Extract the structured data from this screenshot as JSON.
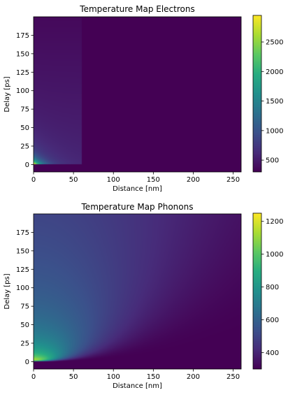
{
  "chart_data": [
    {
      "type": "heatmap",
      "title": "Temperature Map Electrons",
      "xlabel": "Distance [nm]",
      "ylabel": "Delay [ps]",
      "xlim": [
        0,
        260
      ],
      "ylim": [
        -10,
        200
      ],
      "xticks": [
        0,
        50,
        100,
        150,
        200,
        250
      ],
      "yticks": [
        0,
        25,
        50,
        75,
        100,
        125,
        150,
        175
      ],
      "colorbar": {
        "colormap": "viridis",
        "vmin": 300,
        "vmax": 2950,
        "ticks": [
          1000,
          1500,
          2000,
          2500
        ],
        "extra_ticks": [
          500
        ]
      },
      "field": {
        "kind": "electrons",
        "t_base": 300,
        "t_peak": 2950,
        "t_heated_plateau": 560,
        "heated_depth": 60,
        "excitation_time": 0
      }
    },
    {
      "type": "heatmap",
      "title": "Temperature Map Phonons",
      "xlabel": "Distance [nm]",
      "ylabel": "Delay [ps]",
      "xlim": [
        0,
        260
      ],
      "ylim": [
        -10,
        200
      ],
      "xticks": [
        0,
        50,
        100,
        150,
        200,
        250
      ],
      "yticks": [
        0,
        25,
        50,
        75,
        100,
        125,
        150,
        175
      ],
      "colorbar": {
        "colormap": "viridis",
        "vmin": 300,
        "vmax": 1250,
        "ticks": [
          400,
          600,
          800,
          1000,
          1200
        ]
      },
      "field": {
        "kind": "phonons",
        "t_base": 300,
        "t_peak": 1250,
        "excitation_time": 0
      }
    }
  ]
}
